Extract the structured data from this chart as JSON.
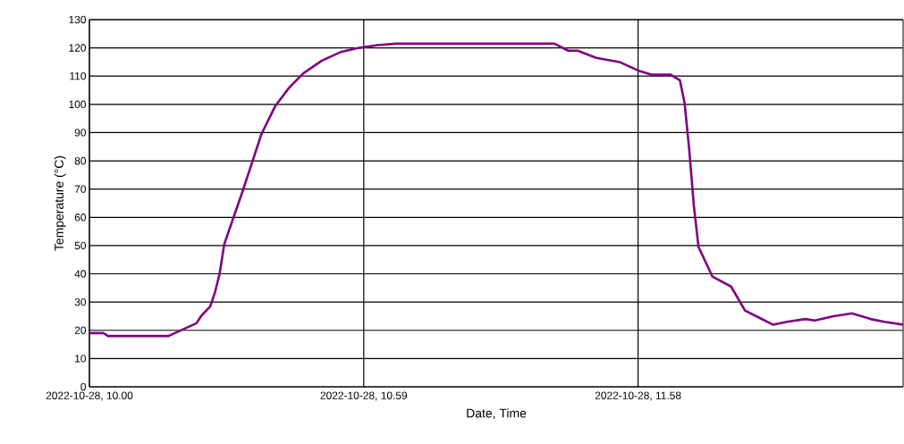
{
  "chart_data": {
    "type": "line",
    "xlabel": "Date, Time",
    "ylabel": "Temperature (°C)",
    "color": "#800080",
    "grid": true,
    "x": [
      "2022-10-28T10:00",
      "2022-10-28T10:03",
      "2022-10-28T10:04",
      "2022-10-28T10:17",
      "2022-10-28T10:19",
      "2022-10-28T10:23",
      "2022-10-28T10:24",
      "2022-10-28T10:26",
      "2022-10-28T10:27",
      "2022-10-28T10:28",
      "2022-10-28T10:29",
      "2022-10-28T10:31",
      "2022-10-28T10:33",
      "2022-10-28T10:35",
      "2022-10-28T10:37",
      "2022-10-28T10:40",
      "2022-10-28T10:43",
      "2022-10-28T10:46",
      "2022-10-28T10:50",
      "2022-10-28T10:54",
      "2022-10-28T10:58",
      "2022-10-28T11:02",
      "2022-10-28T11:06",
      "2022-10-28T11:40",
      "2022-10-28T11:43",
      "2022-10-28T11:45",
      "2022-10-28T11:49",
      "2022-10-28T11:54",
      "2022-10-28T11:58",
      "2022-10-28T12:01",
      "2022-10-28T12:05",
      "2022-10-28T12:07",
      "2022-10-28T12:08",
      "2022-10-28T12:09",
      "2022-10-28T12:10",
      "2022-10-28T12:11",
      "2022-10-28T12:12",
      "2022-10-28T12:14",
      "2022-10-28T12:18",
      "2022-10-28T12:21",
      "2022-10-28T12:24",
      "2022-10-28T12:27",
      "2022-10-28T12:30",
      "2022-10-28T12:34",
      "2022-10-28T12:36",
      "2022-10-28T12:40",
      "2022-10-28T12:44",
      "2022-10-28T12:48",
      "2022-10-28T12:51",
      "2022-10-28T12:55"
    ],
    "values": [
      19,
      19,
      18,
      18,
      19.5,
      22.5,
      25,
      28.5,
      33.5,
      40,
      50.5,
      60,
      69.5,
      79.5,
      89.5,
      99.5,
      106,
      111,
      115.5,
      118.5,
      120,
      121,
      121.5,
      121.5,
      119,
      119,
      116.5,
      115,
      112,
      110.5,
      110.5,
      108.5,
      100.5,
      84,
      64,
      49.5,
      46,
      39,
      35.5,
      27,
      24.5,
      22,
      23,
      24,
      23.5,
      25,
      26,
      24,
      23,
      22
    ],
    "xlim": [
      "2022-10-28T10:00",
      "2022-10-28T12:55"
    ],
    "ylim": [
      0,
      130
    ],
    "xticks": [
      {
        "value": "2022-10-28T10:00",
        "label": "2022-10-28, 10.00"
      },
      {
        "value": "2022-10-28T10:59",
        "label": "2022-10-28, 10.59"
      },
      {
        "value": "2022-10-28T11:58",
        "label": "2022-10-28, 11.58"
      }
    ],
    "yticks": [
      0,
      10,
      20,
      30,
      40,
      50,
      60,
      70,
      80,
      90,
      100,
      110,
      120,
      130
    ]
  }
}
